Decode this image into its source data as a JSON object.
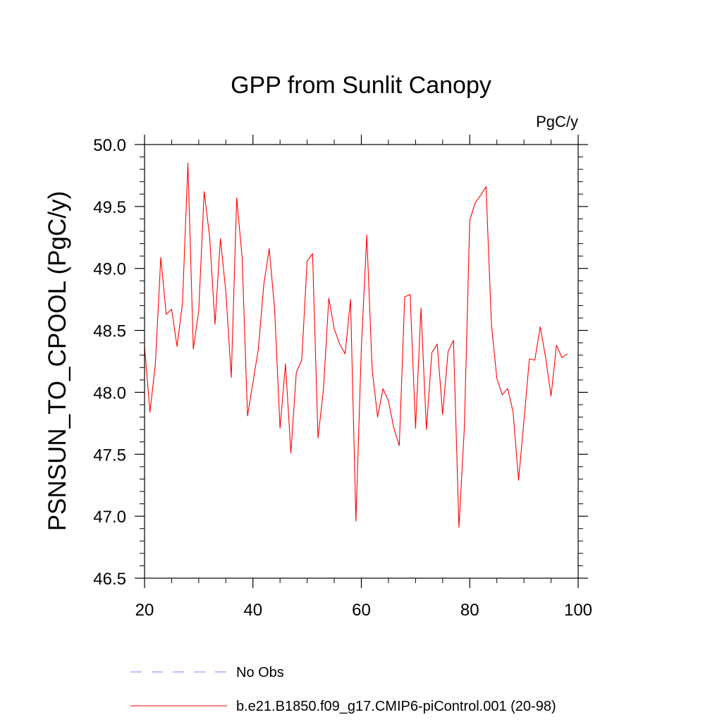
{
  "chart_data": {
    "type": "line",
    "title": "GPP from Sunlit Canopy",
    "units": "PgC/y",
    "xlabel": "",
    "ylabel": "PSNSUN_TO_CPOOL  (PgC/y)",
    "xlim": [
      20,
      100
    ],
    "ylim": [
      46.5,
      50.0
    ],
    "xticks": [
      20,
      40,
      60,
      80,
      100
    ],
    "xtick_labels": [
      "20",
      "40",
      "60",
      "80",
      "100"
    ],
    "yticks": [
      46.5,
      47.0,
      47.5,
      48.0,
      48.5,
      49.0,
      49.5,
      50.0
    ],
    "ytick_labels": [
      "46.5",
      "47.0",
      "47.5",
      "48.0",
      "48.5",
      "49.0",
      "49.5",
      "50.0"
    ],
    "grid": false,
    "legend_position": "bottom",
    "series": [
      {
        "name": "No Obs",
        "color": "#8080ff",
        "style": "dashed",
        "x": [],
        "values": []
      },
      {
        "name": "b.e21.B1850.f09_g17.CMIP6-piControl.001 (20-98)",
        "color": "#ff0000",
        "style": "solid",
        "x": [
          20,
          21,
          22,
          23,
          24,
          25,
          26,
          27,
          28,
          29,
          30,
          31,
          32,
          33,
          34,
          35,
          36,
          37,
          38,
          39,
          40,
          41,
          42,
          43,
          44,
          45,
          46,
          47,
          48,
          49,
          50,
          51,
          52,
          53,
          54,
          55,
          56,
          57,
          58,
          59,
          60,
          61,
          62,
          63,
          64,
          65,
          66,
          67,
          68,
          69,
          70,
          71,
          72,
          73,
          74,
          75,
          76,
          77,
          78,
          79,
          80,
          81,
          82,
          83,
          84,
          85,
          86,
          87,
          88,
          89,
          90,
          91,
          92,
          93,
          94,
          95,
          96,
          97,
          98
        ],
        "values": [
          48.37,
          47.84,
          48.23,
          49.09,
          48.63,
          48.67,
          48.37,
          48.72,
          49.85,
          48.35,
          48.66,
          49.62,
          49.26,
          48.55,
          49.24,
          48.81,
          48.12,
          49.57,
          49.09,
          47.81,
          48.08,
          48.35,
          48.87,
          49.16,
          48.67,
          47.71,
          48.23,
          47.51,
          48.16,
          48.26,
          49.06,
          49.12,
          47.63,
          48.02,
          48.76,
          48.51,
          48.39,
          48.31,
          48.75,
          46.96,
          48.36,
          49.27,
          48.18,
          47.8,
          48.03,
          47.93,
          47.71,
          47.57,
          48.77,
          48.79,
          47.71,
          48.68,
          47.7,
          48.32,
          48.39,
          47.82,
          48.33,
          48.42,
          46.91,
          47.71,
          49.39,
          49.53,
          49.59,
          49.66,
          48.55,
          48.11,
          47.98,
          48.03,
          47.84,
          47.29,
          47.77,
          48.27,
          48.26,
          48.53,
          48.28,
          47.97,
          48.38,
          48.28,
          48.31
        ]
      }
    ]
  }
}
